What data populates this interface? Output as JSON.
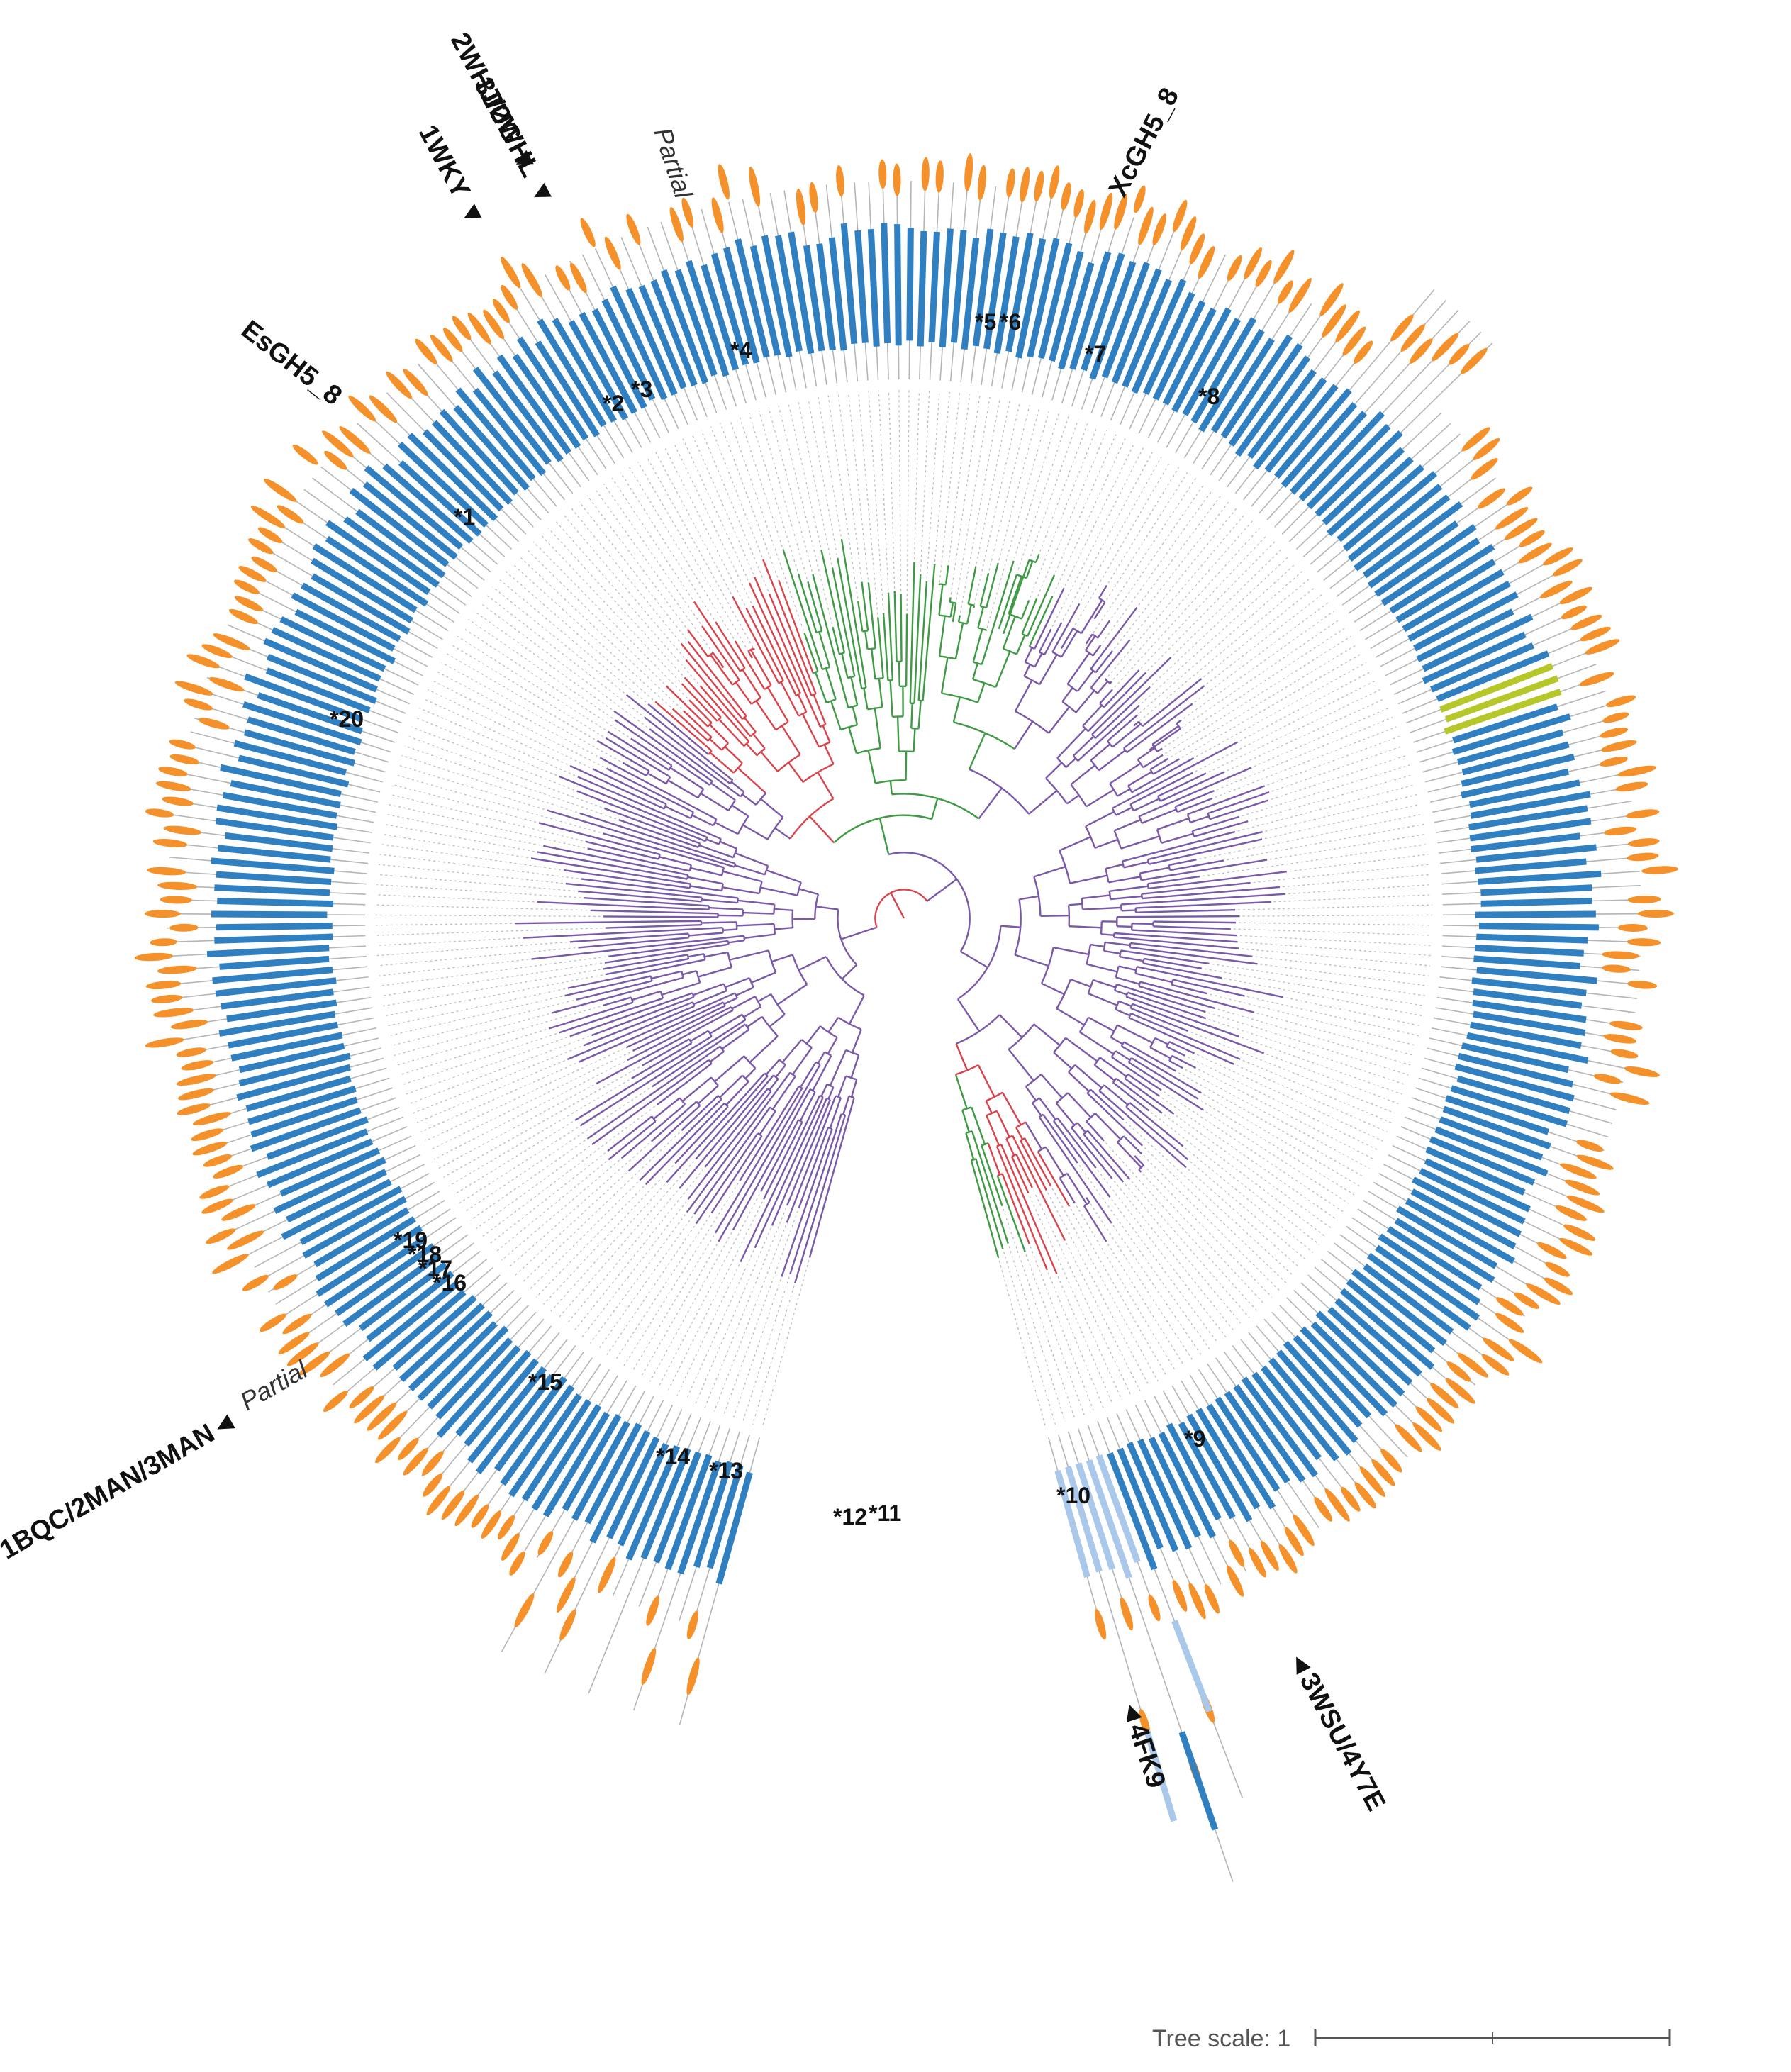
{
  "figure": {
    "colors": {
      "clade_red": "#d9434b",
      "clade_green": "#3f9a45",
      "clade_purple": "#7a5aa8",
      "clade_grey": "#8a8a8a",
      "domain_dark_blue": "#2f7fc1",
      "domain_light_blue": "#a9c8ea",
      "domain_orange": "#f5912b",
      "domain_yellow_green": "#b6c72a",
      "domain_brown": "#a18f86",
      "line_grey": "#b5b5b5"
    },
    "structure_labels": [
      {
        "id": "2whj",
        "text": "2WHJ/2WHL",
        "marker": "▼"
      },
      {
        "id": "3jug",
        "text": "3JUG",
        "marker": "▼"
      },
      {
        "id": "1wky",
        "text": "1WKY",
        "marker": "▼"
      },
      {
        "id": "esgh5",
        "text": "EsGH5_8",
        "marker": ""
      },
      {
        "id": "xcgh5",
        "text": "XcGH5_8",
        "marker": ""
      },
      {
        "id": "1bqc",
        "text": "1BQC/2MAN/3MAN",
        "marker": "◄"
      },
      {
        "id": "4fk9",
        "text": "4FK9",
        "marker": "◄"
      },
      {
        "id": "3wsu",
        "text": "3WSU/4Y7E",
        "marker": "◄"
      }
    ],
    "partial_labels": [
      "Partial",
      "Partial"
    ],
    "starred_sequences": [
      "1",
      "2",
      "3",
      "4",
      "5",
      "6",
      "7",
      "8",
      "9",
      "10",
      "11",
      "12",
      "13",
      "14",
      "15",
      "16",
      "17",
      "18",
      "19",
      "20"
    ],
    "star_symbol": "*",
    "tree_scale": {
      "label": "Tree scale: 1",
      "value": 1
    }
  }
}
